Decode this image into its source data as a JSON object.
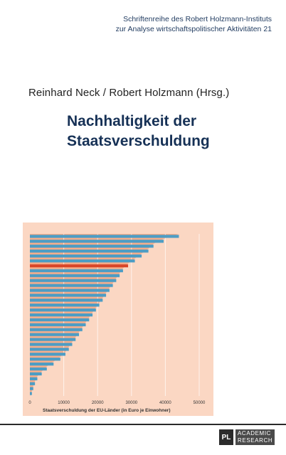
{
  "series": {
    "line1": "Schriftenreihe des Robert Holzmann-Instituts",
    "line2": "zur Analyse wirtschaftspolitischer Aktivitäten 21"
  },
  "authors": "Reinhard Neck / Robert Holzmann (Hrsg.)",
  "title": {
    "line1": "Nachhaltigkeit der",
    "line2": "Staatsverschuldung"
  },
  "publisher": {
    "logo": "PL",
    "line1": "ACADEMIC",
    "line2": "RESEARCH"
  },
  "colors": {
    "background": "#fbd7c3",
    "area": "#f6ae8c",
    "bars": "#4e9dc4",
    "highlight_bar": "#d9472a",
    "title": "#163156"
  },
  "chart_data": {
    "type": "bar",
    "orientation": "horizontal",
    "xlabel": "Staatsverschuldung der EU-Länder (in Euro je Einwohner)",
    "xlim": [
      0,
      50000
    ],
    "x_ticks": [
      "0",
      "10000",
      "20000",
      "30000",
      "40000",
      "50000"
    ],
    "grid": true,
    "values": [
      44000,
      39500,
      36500,
      35000,
      33000,
      31000,
      29000,
      27500,
      26500,
      25500,
      24500,
      23500,
      22500,
      21500,
      20500,
      19500,
      18500,
      17500,
      16500,
      15500,
      14500,
      13500,
      12500,
      11500,
      10500,
      9000,
      7000,
      5000,
      3500,
      2200,
      1500,
      1000,
      600
    ],
    "highlight_index": 6
  }
}
